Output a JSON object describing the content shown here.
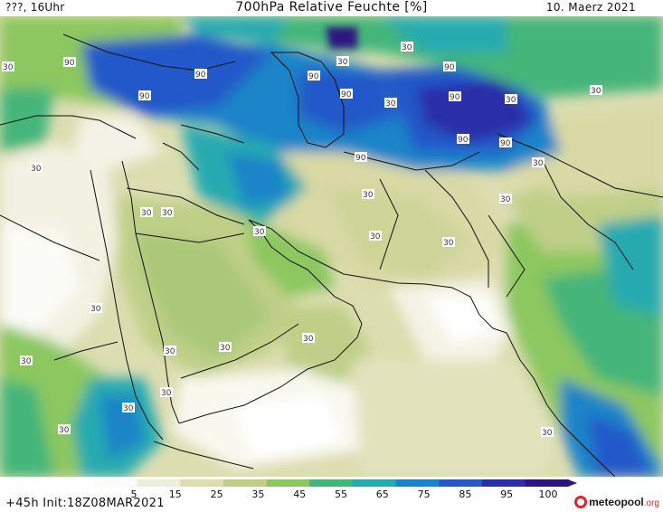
{
  "header": {
    "time_label": "???, 16Uhr",
    "title": "700hPa Relative Feuchte [%]",
    "date": "10. Maerz 2021"
  },
  "map": {
    "contour_labels": [
      {
        "value": "90"
      },
      {
        "value": "90"
      },
      {
        "value": "90"
      },
      {
        "value": "90"
      },
      {
        "value": "90"
      },
      {
        "value": "90"
      },
      {
        "value": "90"
      },
      {
        "value": "90"
      },
      {
        "value": "90"
      },
      {
        "value": "90"
      },
      {
        "value": "30"
      },
      {
        "value": "30"
      },
      {
        "value": "30"
      },
      {
        "value": "30"
      },
      {
        "value": "30"
      },
      {
        "value": "30"
      },
      {
        "value": "30"
      },
      {
        "value": "30"
      },
      {
        "value": "30"
      },
      {
        "value": "30"
      },
      {
        "value": "30"
      },
      {
        "value": "30"
      },
      {
        "value": "30"
      },
      {
        "value": "30"
      },
      {
        "value": "30"
      },
      {
        "value": "30"
      },
      {
        "value": "30"
      },
      {
        "value": "30"
      },
      {
        "value": "30"
      },
      {
        "value": "30"
      },
      {
        "value": "30"
      },
      {
        "value": "30"
      },
      {
        "value": "30"
      },
      {
        "value": "30"
      }
    ]
  },
  "colorbar": {
    "ticks": [
      "5",
      "15",
      "25",
      "35",
      "45",
      "55",
      "65",
      "75",
      "85",
      "95",
      "100"
    ],
    "colors": [
      "#fbfbf7",
      "#eeeedd",
      "#ddddb1",
      "#bfcf88",
      "#8cc760",
      "#44b57a",
      "#26aab0",
      "#1a84c8",
      "#2459c9",
      "#2a2fa8",
      "#2e157e"
    ]
  },
  "footer": {
    "run_info": "+45h Init:18Z08MAR2021",
    "brand": "meteopool",
    "brand_domain": ".org"
  }
}
